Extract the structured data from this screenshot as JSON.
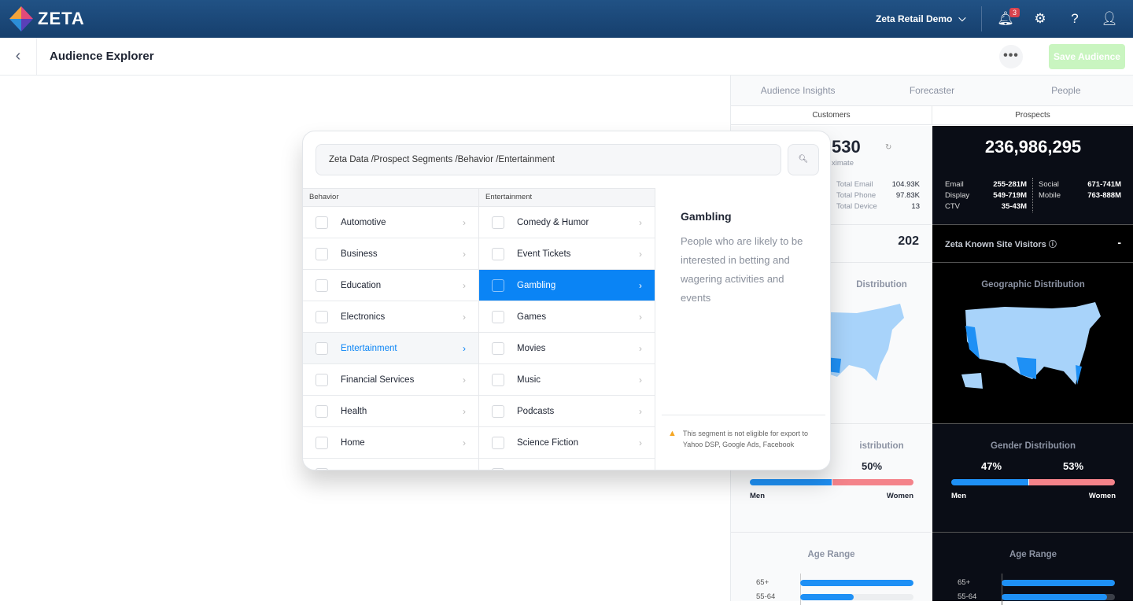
{
  "header": {
    "brand": "ZETA",
    "account": "Zeta Retail Demo",
    "notifications": "3",
    "icons": [
      "bell-icon",
      "gear-icon",
      "help-icon",
      "user-icon"
    ]
  },
  "subheader": {
    "title": "Audience Explorer",
    "more": "•••",
    "save": "Save Audience"
  },
  "panel": {
    "tabs": [
      "Audience Insights",
      "Forecaster",
      "People"
    ],
    "subtabs": [
      "Customers",
      "Prospects"
    ],
    "customers": {
      "count": "530",
      "approx": "ximate",
      "stats": [
        [
          "Total Email",
          "104.93K"
        ],
        [
          "Total Phone",
          "97.83K"
        ],
        [
          "Total Device",
          "13"
        ]
      ],
      "known": "202",
      "geo": "Distribution",
      "gender_title": "istribution",
      "gender": {
        "men": 50,
        "women": 50,
        "women_label": "50%"
      },
      "age_title": "Age Range",
      "ages": [
        [
          "65+",
          100
        ],
        [
          "55-64",
          47
        ]
      ]
    },
    "prospects": {
      "count": "236,986,295",
      "stats_left": [
        [
          "Email",
          "255-281M"
        ],
        [
          "Display",
          "549-719M"
        ],
        [
          "CTV",
          "35-43M"
        ]
      ],
      "stats_right": [
        [
          "Social",
          "671-741M"
        ],
        [
          "Mobile",
          "763-888M"
        ]
      ],
      "known_label": "Zeta Known Site Visitors",
      "known": "-",
      "geo": "Geographic Distribution",
      "gender_title": "Gender Distribution",
      "gender": {
        "men": 47,
        "women": 53,
        "men_label": "47%",
        "women_label": "53%"
      },
      "age_title": "Age Range",
      "ages": [
        [
          "65+",
          100
        ],
        [
          "55-64",
          93
        ]
      ]
    },
    "men": "Men",
    "women": "Women"
  },
  "modal": {
    "path": "Zeta Data /Prospect Segments /Behavior /Entertainment",
    "col1_title": "Behavior",
    "col1": [
      "Automotive",
      "Business",
      "Education",
      "Electronics",
      "Entertainment",
      "Financial Services",
      "Health",
      "Home"
    ],
    "col2_title": "Entertainment",
    "col2": [
      "Comedy & Humor",
      "Event Tickets",
      "Gambling",
      "Games",
      "Movies",
      "Music",
      "Podcasts",
      "Science Fiction"
    ],
    "detail_title": "Gambling",
    "detail_desc": "People who are likely to be interested in betting and wagering activities and events",
    "warning": "This segment is not eligible for export to Yahoo DSP, Google Ads, Facebook"
  },
  "colors": {
    "header": "#1d4b7e",
    "accent": "#0a84f5",
    "men": "#1e90f5",
    "women": "#f4838a",
    "save": "#c9f5c0"
  }
}
